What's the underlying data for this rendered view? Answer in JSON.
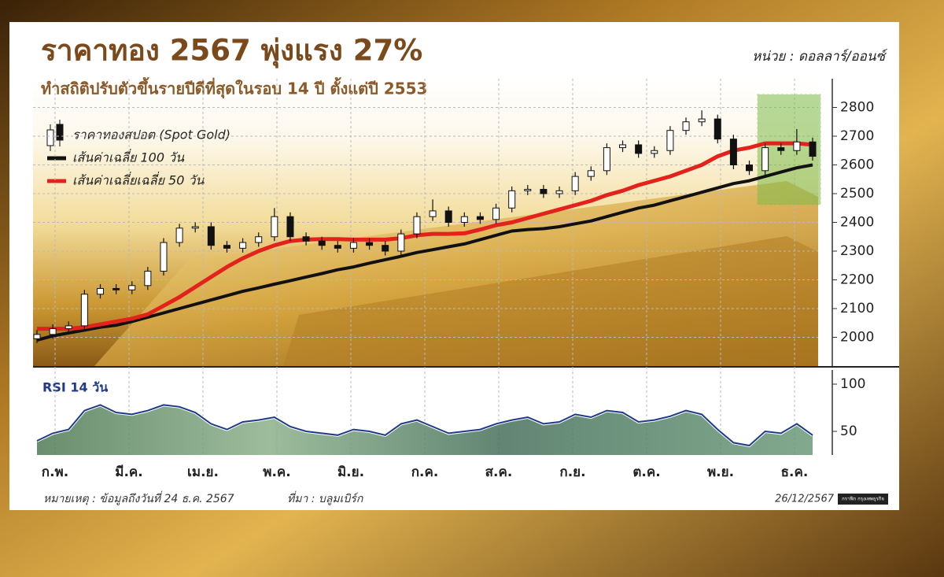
{
  "chart_data": [
    {
      "type": "candlestick",
      "title": "ราคาทอง 2567 พุ่งแรง 27%",
      "subtitle": "ทำสถิติปรับตัวขึ้นรายปีดีที่สุดในรอบ 14 ปี ตั้งแต่ปี 2553",
      "unit_label": "หน่วย : ดอลลาร์/ออนซ์",
      "ylim": [
        1900,
        2900
      ],
      "yticks": [
        2000,
        2100,
        2200,
        2300,
        2400,
        2500,
        2600,
        2700,
        2800
      ],
      "grid": true,
      "candles": {
        "name": "ราคาทองสปอต (Spot Gold)",
        "up_color": "#ffffff",
        "down_color": "#111111",
        "open": [
          1995,
          2010,
          2030,
          2040,
          2150,
          2170,
          2165,
          2180,
          2230,
          2330,
          2380,
          2385,
          2320,
          2310,
          2330,
          2350,
          2420,
          2350,
          2335,
          2320,
          2310,
          2330,
          2320,
          2300,
          2360,
          2420,
          2440,
          2400,
          2420,
          2410,
          2450,
          2510,
          2515,
          2500,
          2510,
          2560,
          2580,
          2660,
          2670,
          2640,
          2650,
          2720,
          2750,
          2760,
          2690,
          2600,
          2580,
          2660,
          2650,
          2680
        ],
        "high": [
          2025,
          2045,
          2055,
          2165,
          2185,
          2185,
          2195,
          2245,
          2345,
          2395,
          2400,
          2400,
          2335,
          2345,
          2365,
          2450,
          2435,
          2365,
          2350,
          2335,
          2345,
          2345,
          2335,
          2375,
          2435,
          2480,
          2455,
          2435,
          2435,
          2465,
          2525,
          2530,
          2530,
          2525,
          2575,
          2595,
          2675,
          2685,
          2685,
          2665,
          2735,
          2765,
          2790,
          2775,
          2705,
          2615,
          2675,
          2675,
          2725,
          2695
        ],
        "low": [
          1980,
          1995,
          2015,
          2025,
          2135,
          2150,
          2150,
          2165,
          2215,
          2315,
          2365,
          2305,
          2295,
          2295,
          2315,
          2335,
          2335,
          2320,
          2305,
          2295,
          2295,
          2305,
          2285,
          2285,
          2345,
          2405,
          2385,
          2385,
          2395,
          2395,
          2435,
          2495,
          2485,
          2485,
          2495,
          2545,
          2565,
          2645,
          2625,
          2625,
          2635,
          2705,
          2735,
          2675,
          2585,
          2565,
          2565,
          2635,
          2635,
          2615
        ],
        "close": [
          2010,
          2030,
          2040,
          2150,
          2170,
          2165,
          2180,
          2230,
          2330,
          2380,
          2385,
          2320,
          2310,
          2330,
          2350,
          2420,
          2350,
          2335,
          2320,
          2310,
          2330,
          2320,
          2300,
          2360,
          2420,
          2440,
          2400,
          2420,
          2410,
          2450,
          2510,
          2515,
          2500,
          2510,
          2560,
          2580,
          2660,
          2670,
          2640,
          2650,
          2720,
          2750,
          2760,
          2690,
          2600,
          2580,
          2660,
          2650,
          2680,
          2630
        ]
      },
      "series": [
        {
          "name": "เส้นค่าเฉลี่ย 100 วัน",
          "color": "#111111",
          "values": [
            1990,
            2005,
            2015,
            2025,
            2035,
            2042,
            2055,
            2070,
            2085,
            2100,
            2115,
            2130,
            2145,
            2160,
            2172,
            2185,
            2197,
            2210,
            2222,
            2235,
            2245,
            2258,
            2270,
            2282,
            2295,
            2305,
            2315,
            2325,
            2340,
            2355,
            2370,
            2375,
            2378,
            2385,
            2395,
            2405,
            2420,
            2435,
            2450,
            2460,
            2475,
            2490,
            2505,
            2520,
            2535,
            2545,
            2560,
            2575,
            2590,
            2600
          ]
        },
        {
          "name": "เส้นค่าเฉลี่ยเฉลี่ย 50 วัน",
          "color": "#e3221c",
          "values": [
            2030,
            2030,
            2030,
            2035,
            2045,
            2055,
            2065,
            2080,
            2110,
            2140,
            2175,
            2210,
            2245,
            2275,
            2300,
            2320,
            2335,
            2340,
            2342,
            2342,
            2340,
            2340,
            2340,
            2345,
            2355,
            2360,
            2360,
            2362,
            2375,
            2390,
            2400,
            2415,
            2430,
            2445,
            2460,
            2475,
            2495,
            2510,
            2530,
            2545,
            2560,
            2580,
            2600,
            2630,
            2650,
            2660,
            2675,
            2675,
            2675,
            2670
          ]
        }
      ],
      "months": [
        "ก.พ.",
        "มี.ค.",
        "เม.ย.",
        "พ.ค.",
        "มิ.ย.",
        "ก.ค.",
        "ส.ค.",
        "ก.ย.",
        "ต.ค.",
        "พ.ย.",
        "ธ.ค."
      ]
    },
    {
      "type": "line",
      "title": "RSI 14 วัน",
      "color": "#1e3a8a",
      "ylim": [
        25,
        115
      ],
      "yticks": [
        50,
        100
      ],
      "values": [
        40,
        48,
        52,
        72,
        78,
        70,
        68,
        72,
        78,
        76,
        70,
        58,
        52,
        60,
        62,
        65,
        55,
        50,
        48,
        46,
        52,
        50,
        46,
        58,
        62,
        55,
        48,
        50,
        52,
        58,
        62,
        65,
        58,
        60,
        68,
        65,
        72,
        70,
        60,
        62,
        66,
        72,
        68,
        52,
        38,
        35,
        50,
        48,
        58,
        46
      ]
    }
  ],
  "footer": {
    "note": "หมายเหตุ : ข้อมูลถึงวันที่ 24 ธ.ค. 2567",
    "source": "ที่มา : บลูมเบิร์ก",
    "date": "26/12/2567",
    "credit": "กราฟิก กรุงเทพธุรกิจ"
  }
}
